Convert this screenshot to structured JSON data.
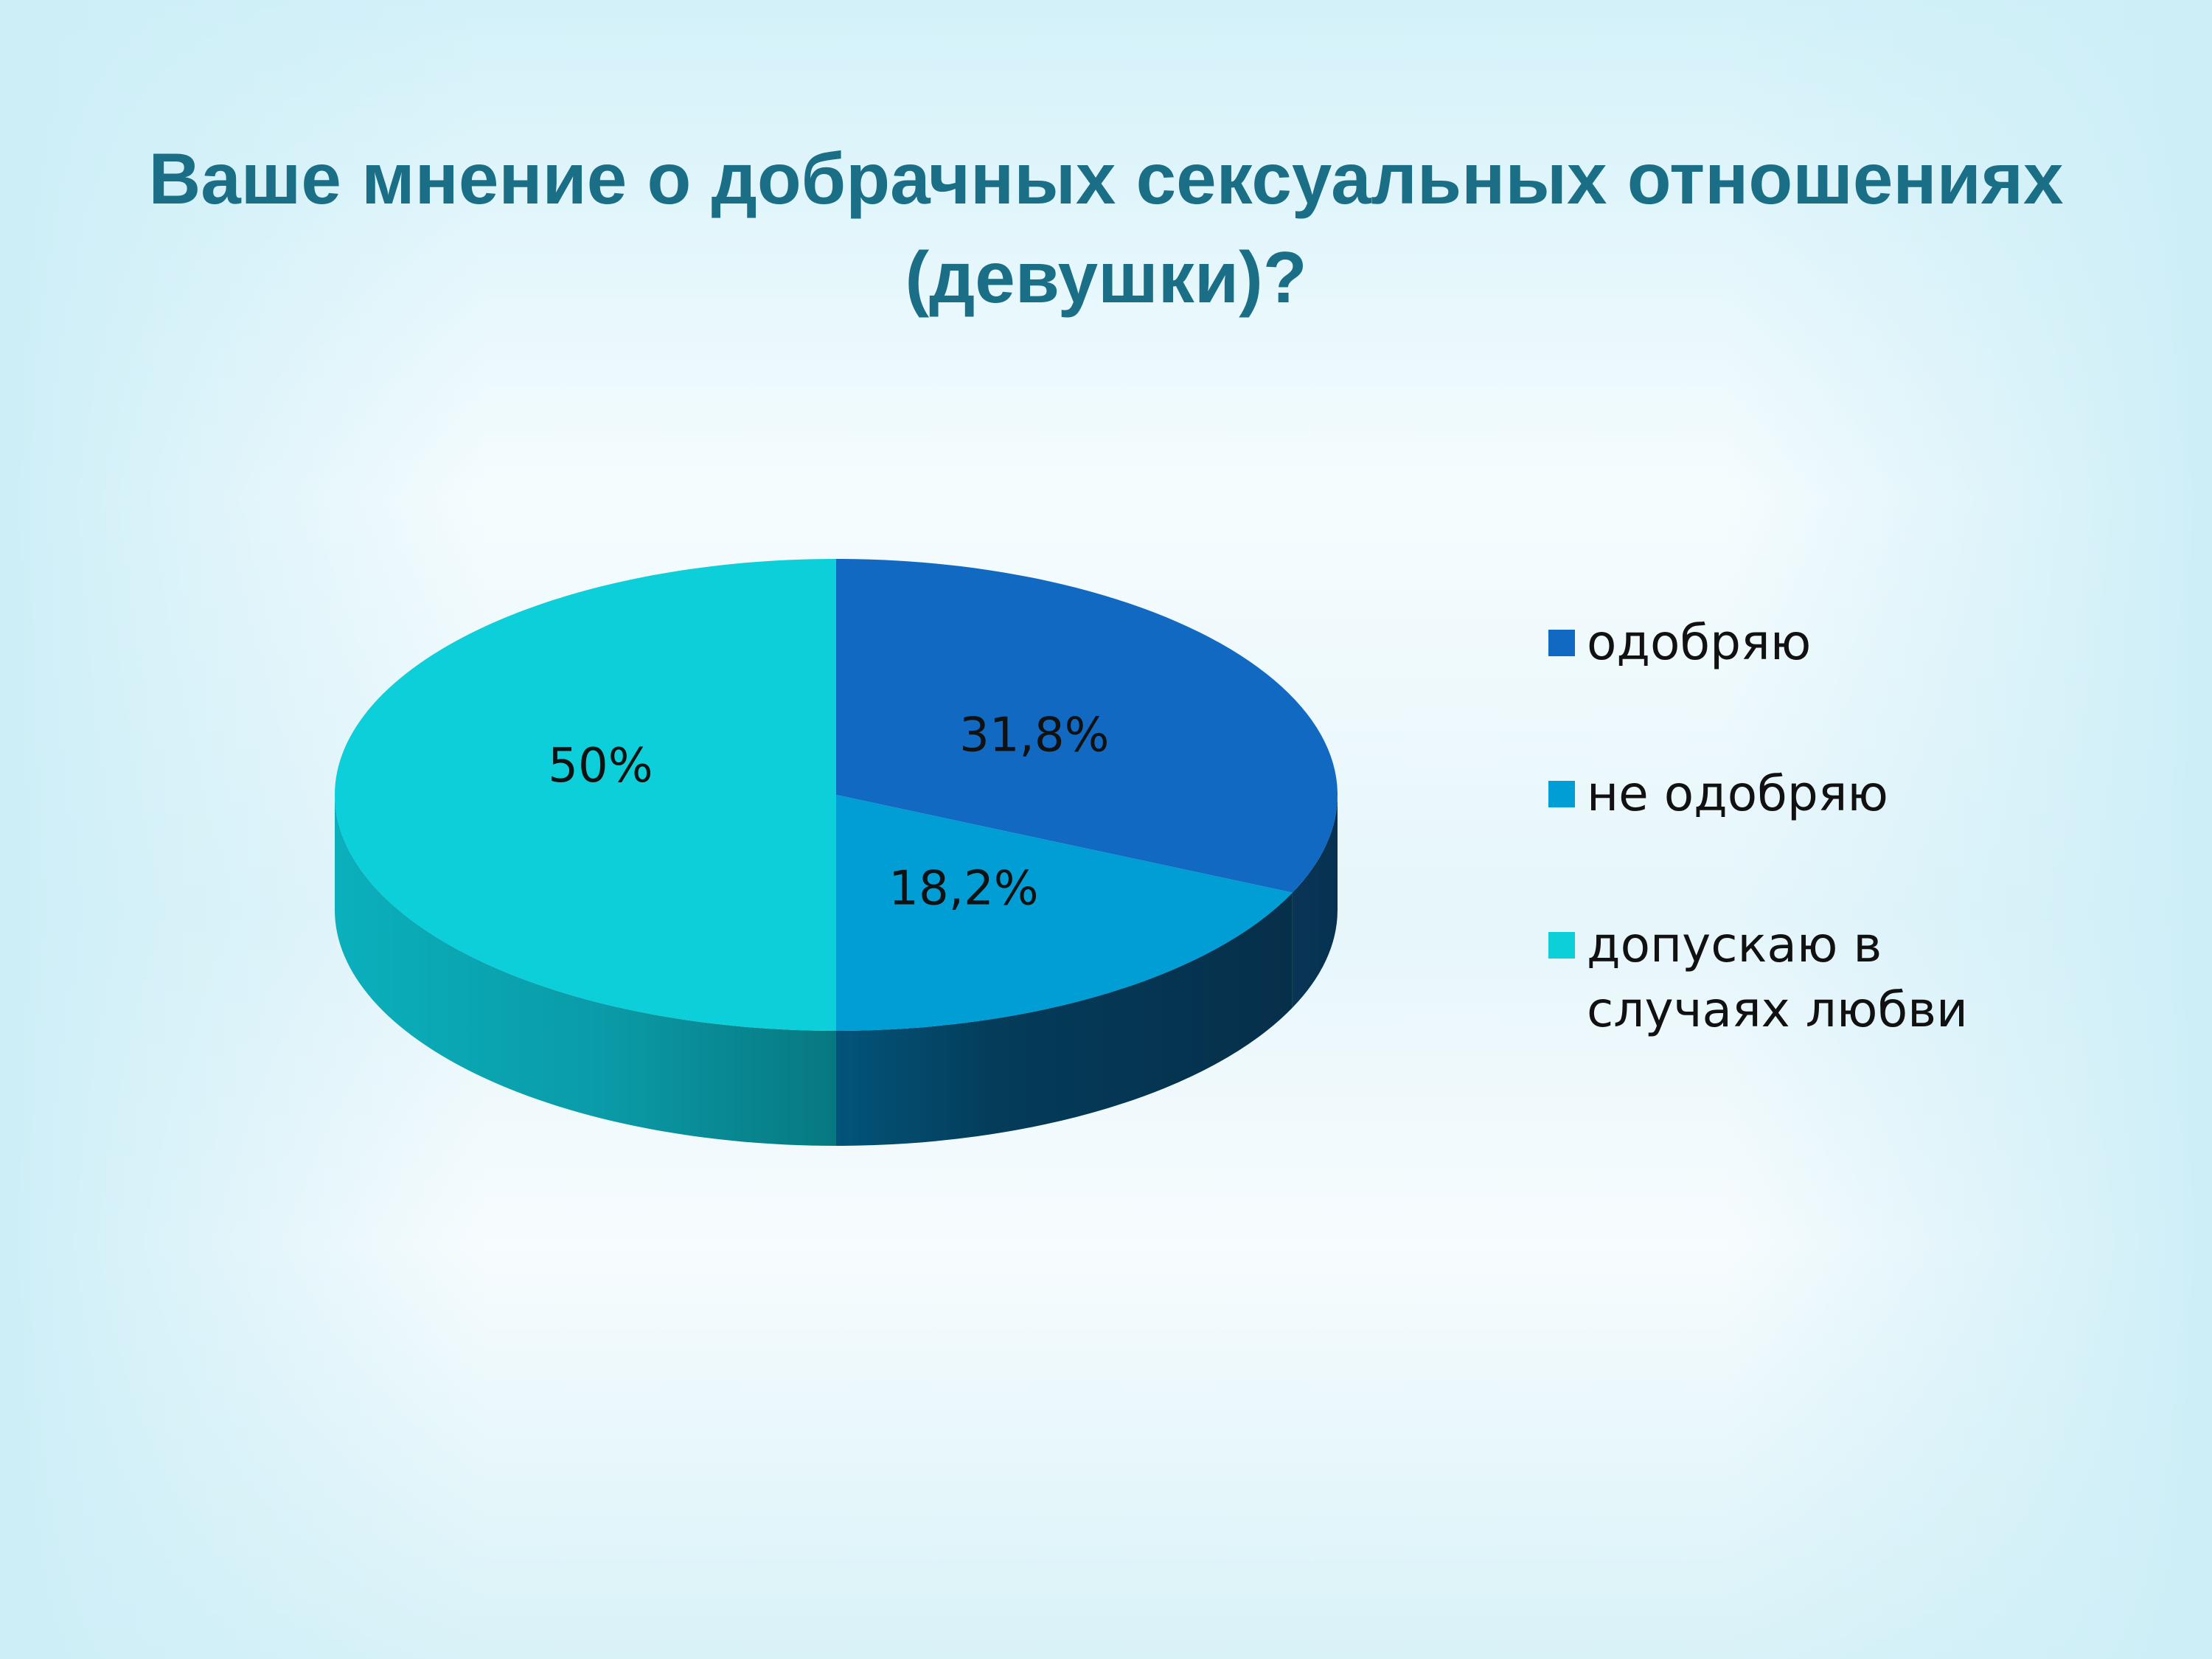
{
  "slide": {
    "title": "Ваше мнение о добрачных сексуальных отношениях (девушки)?"
  },
  "chart_data": {
    "type": "pie",
    "style": "3d",
    "title": "Ваше мнение о добрачных сексуальных отношениях (девушки)?",
    "legend_position": "right",
    "slices": [
      {
        "label": "одобряю",
        "value": 31.8,
        "value_label": "31,8%",
        "color": "#1269c2"
      },
      {
        "label": "не одобряю",
        "value": 18.2,
        "value_label": "18,2%",
        "color": "#019dd5"
      },
      {
        "label": "допускаю в случаях любви",
        "value": 50,
        "value_label": "50%",
        "color": "#0ccfd9"
      }
    ]
  }
}
